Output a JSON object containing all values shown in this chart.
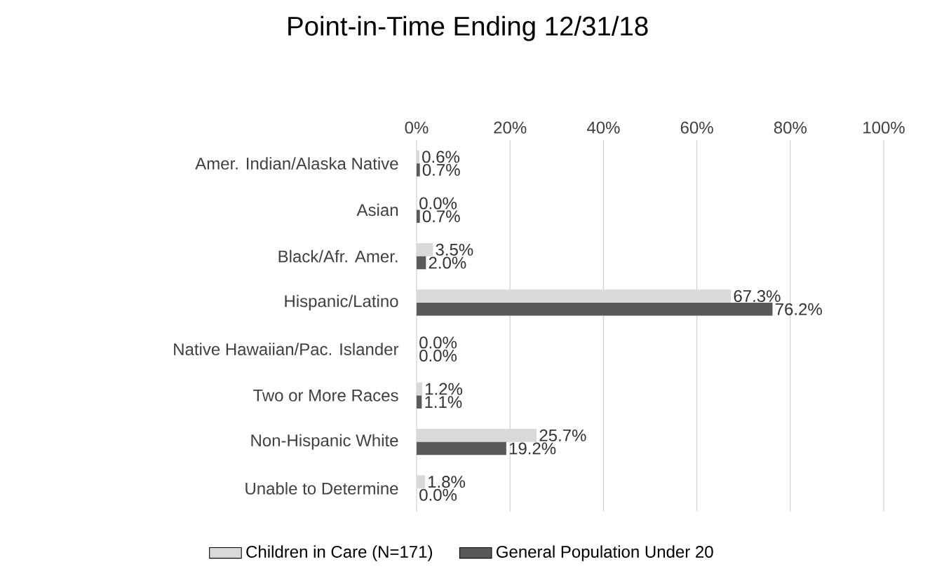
{
  "chart_data": {
    "type": "bar",
    "orientation": "horizontal",
    "title": "Point-in-Time Ending 12/31/18",
    "categories": [
      "Amer. Indian/Alaska Native",
      "Asian",
      "Black/Afr. Amer.",
      "Hispanic/Latino",
      "Native Hawaiian/Pac. Islander",
      "Two or More Races",
      "Non-Hispanic White",
      "Unable to Determine"
    ],
    "series": [
      {
        "name": "Children in Care (N=171)",
        "color": "#d9d9d9",
        "values": [
          0.6,
          0.0,
          3.5,
          67.3,
          0.0,
          1.2,
          25.7,
          1.8
        ],
        "value_labels": [
          "0.6%",
          "0.0%",
          "3.5%",
          "67.3%",
          "0.0%",
          "1.2%",
          "25.7%",
          "1.8%"
        ]
      },
      {
        "name": "General Population Under 20",
        "color": "#595959",
        "values": [
          0.7,
          0.7,
          2.0,
          76.2,
          0.0,
          1.1,
          19.2,
          0.0
        ],
        "value_labels": [
          "0.7%",
          "0.7%",
          "2.0%",
          "76.2%",
          "0.0%",
          "1.1%",
          "19.2%",
          "0.0%"
        ]
      }
    ],
    "xlim": [
      0,
      100
    ],
    "xticks": [
      {
        "value": 0,
        "label": "0%"
      },
      {
        "value": 20,
        "label": "20%"
      },
      {
        "value": 40,
        "label": "40%"
      },
      {
        "value": 60,
        "label": "60%"
      },
      {
        "value": 80,
        "label": "80%"
      },
      {
        "value": 100,
        "label": "100%"
      }
    ],
    "grid": "x",
    "legend": "bottom"
  }
}
